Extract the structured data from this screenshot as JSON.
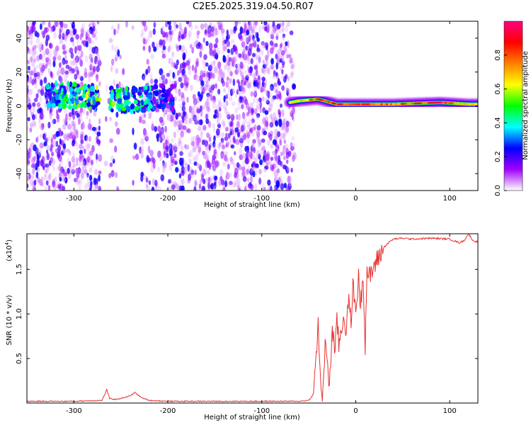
{
  "page": {
    "title": "C2E5.2025.319.04.50.R07"
  },
  "chart_data": [
    {
      "type": "heatmap",
      "title": "C2E5.2025.319.04.50.R07",
      "xlabel": "Height of straight line (km)",
      "ylabel": "Frequency (Hz)",
      "xlim": [
        -350,
        130
      ],
      "ylim": [
        -50,
        50
      ],
      "xticks": [
        -300,
        -200,
        -100,
        0,
        100
      ],
      "yticks": [
        -40,
        -20,
        0,
        20,
        40
      ],
      "colorbar": {
        "label": "Normalized spectral amplitude",
        "range": [
          0,
          1
        ],
        "ticks": [
          "0.0",
          "0.2",
          "0.4",
          "0.6",
          "0.8"
        ],
        "colors": [
          "#ffffff",
          "#a000ff",
          "#0000ff",
          "#00ffff",
          "#00ff00",
          "#ffff00",
          "#ff8000",
          "#ff0000",
          "#ff0080"
        ]
      },
      "signal_track": [
        {
          "x": -325,
          "f": 7,
          "amp": 0.35
        },
        {
          "x": -300,
          "f": 6,
          "amp": 0.45
        },
        {
          "x": -275,
          "f": 5,
          "amp": 0.5
        },
        {
          "x": -250,
          "f": 3,
          "amp": 0.45
        },
        {
          "x": -225,
          "f": 4,
          "amp": 0.35
        },
        {
          "x": -200,
          "f": 5,
          "amp": 0.25
        },
        {
          "x": -70,
          "f": 2,
          "amp": 0.3
        },
        {
          "x": -60,
          "f": 3,
          "amp": 0.6
        },
        {
          "x": -40,
          "f": 4,
          "amp": 0.95
        },
        {
          "x": -20,
          "f": 1,
          "amp": 0.95
        },
        {
          "x": 0,
          "f": 1,
          "amp": 0.9
        },
        {
          "x": 40,
          "f": 1,
          "amp": 0.8
        },
        {
          "x": 90,
          "f": 2,
          "amp": 0.95
        },
        {
          "x": 120,
          "f": 1,
          "amp": 0.7
        }
      ]
    },
    {
      "type": "line",
      "xlabel": "Height of straight line (km)",
      "ylabel": "SNR (10 * v/v)",
      "multiplier": "(x10",
      "multiplier_exp": "4",
      "multiplier_close": ")",
      "xlim": [
        -350,
        130
      ],
      "ylim": [
        0,
        1.9
      ],
      "xticks": [
        -300,
        -200,
        -100,
        0,
        100
      ],
      "yticks": [
        "0.5",
        "1.0",
        "1.5"
      ],
      "color": "#e83030",
      "series": [
        {
          "x": [
            -350,
            -300,
            -270,
            -265,
            -262,
            -255,
            -240,
            -235,
            -228,
            -220,
            -200,
            -150,
            -100,
            -60,
            -50,
            -45,
            -42,
            -40,
            -38,
            -35,
            -32,
            -30,
            -28,
            -25,
            -22,
            -20,
            -18,
            -15,
            -12,
            -10,
            -8,
            -5,
            -3,
            0,
            3,
            5,
            8,
            10,
            12,
            15,
            20,
            25,
            30,
            35,
            40,
            50,
            60,
            80,
            100,
            110,
            115,
            120,
            125,
            130
          ],
          "y": [
            0.02,
            0.02,
            0.03,
            0.15,
            0.05,
            0.04,
            0.08,
            0.12,
            0.06,
            0.03,
            0.02,
            0.02,
            0.02,
            0.02,
            0.03,
            0.1,
            0.55,
            0.9,
            0.3,
            0.05,
            0.75,
            0.45,
            0.15,
            0.85,
            0.55,
            0.95,
            0.65,
            0.85,
            1.0,
            0.75,
            1.15,
            0.95,
            1.3,
            1.05,
            1.4,
            1.1,
            1.45,
            0.65,
            1.5,
            1.4,
            1.55,
            1.65,
            1.75,
            1.8,
            1.84,
            1.85,
            1.84,
            1.85,
            1.84,
            1.8,
            1.82,
            1.9,
            1.82,
            1.81
          ]
        }
      ]
    }
  ]
}
